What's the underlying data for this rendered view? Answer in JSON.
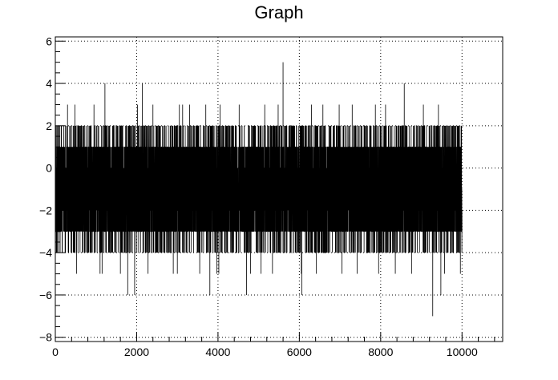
{
  "chart_data": {
    "type": "line",
    "title": "Graph",
    "xlabel": "",
    "ylabel": "",
    "xlim": [
      0,
      11000
    ],
    "ylim": [
      -8.2,
      6.2
    ],
    "grid": true,
    "x_ticks": [
      0,
      2000,
      4000,
      6000,
      8000,
      10000
    ],
    "x_tick_labels": [
      "0",
      "2000",
      "4000",
      "6000",
      "8000",
      "10000"
    ],
    "y_ticks": [
      -8,
      -6,
      -4,
      -2,
      0,
      2,
      4,
      6
    ],
    "y_tick_labels": [
      "−8",
      "−6",
      "−4",
      "−2",
      "0",
      "2",
      "4",
      "6"
    ],
    "series": [
      {
        "x_range": [
          0,
          10000
        ],
        "n_points": 10000,
        "core_band": [
          -3,
          1
        ],
        "frequent_range": [
          -4,
          2
        ],
        "values_step": 1,
        "extremes": [
          {
            "x": 1220,
            "y": 4
          },
          {
            "x": 2140,
            "y": 4
          },
          {
            "x": 5600,
            "y": 5
          },
          {
            "x": 8580,
            "y": 4
          },
          {
            "x": 300,
            "y": 3
          },
          {
            "x": 480,
            "y": 3
          },
          {
            "x": 950,
            "y": 3
          },
          {
            "x": 1100,
            "y": 3
          },
          {
            "x": 2020,
            "y": 3
          },
          {
            "x": 2400,
            "y": 3
          },
          {
            "x": 3050,
            "y": 3
          },
          {
            "x": 3130,
            "y": 3
          },
          {
            "x": 3300,
            "y": 3
          },
          {
            "x": 3700,
            "y": 3
          },
          {
            "x": 4050,
            "y": 3
          },
          {
            "x": 4520,
            "y": 3
          },
          {
            "x": 5150,
            "y": 3
          },
          {
            "x": 5480,
            "y": 3
          },
          {
            "x": 6300,
            "y": 3
          },
          {
            "x": 6580,
            "y": 3
          },
          {
            "x": 6980,
            "y": 3
          },
          {
            "x": 7300,
            "y": 3
          },
          {
            "x": 7870,
            "y": 3
          },
          {
            "x": 8120,
            "y": 3
          },
          {
            "x": 9050,
            "y": 3
          },
          {
            "x": 9420,
            "y": 3
          },
          {
            "x": 9960,
            "y": 3
          },
          {
            "x": 520,
            "y": -5
          },
          {
            "x": 1100,
            "y": -5
          },
          {
            "x": 1150,
            "y": -5
          },
          {
            "x": 1600,
            "y": -5
          },
          {
            "x": 2280,
            "y": -5
          },
          {
            "x": 2900,
            "y": -5
          },
          {
            "x": 3000,
            "y": -5
          },
          {
            "x": 3550,
            "y": -5
          },
          {
            "x": 3970,
            "y": -5
          },
          {
            "x": 4020,
            "y": -5
          },
          {
            "x": 4800,
            "y": -5
          },
          {
            "x": 5060,
            "y": -5
          },
          {
            "x": 5340,
            "y": -5
          },
          {
            "x": 6050,
            "y": -5
          },
          {
            "x": 6420,
            "y": -5
          },
          {
            "x": 7050,
            "y": -5
          },
          {
            "x": 7420,
            "y": -5
          },
          {
            "x": 7950,
            "y": -5
          },
          {
            "x": 8360,
            "y": -5
          },
          {
            "x": 8760,
            "y": -5
          },
          {
            "x": 9570,
            "y": -5
          },
          {
            "x": 9960,
            "y": -5
          },
          {
            "x": 1780,
            "y": -6
          },
          {
            "x": 1950,
            "y": -6
          },
          {
            "x": 3800,
            "y": -6
          },
          {
            "x": 4700,
            "y": -6
          },
          {
            "x": 6060,
            "y": -6
          },
          {
            "x": 9480,
            "y": -6
          },
          {
            "x": 9280,
            "y": -7
          }
        ]
      }
    ]
  }
}
